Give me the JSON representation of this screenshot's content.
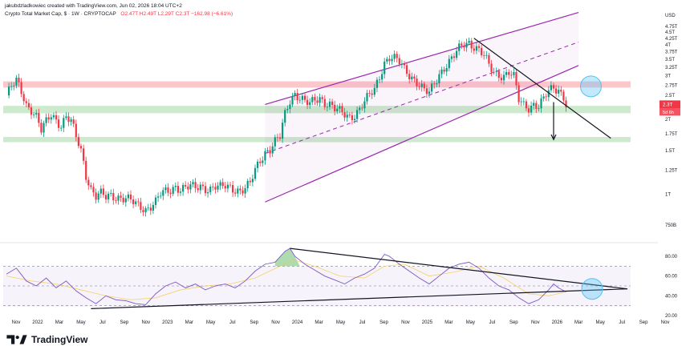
{
  "header": {
    "author_line": "jakubdzladkowiec created with TradingView.com, Jun 02, 2026 18:04 UTC+2",
    "symbol": "Crypto Total Market Cap, $ · 1W · CRYPTOCAP",
    "ohlc": "O2.47T  H2.49T  L2.29T  C2.3T  −162.98 (−6.61%)"
  },
  "footer": {
    "brand": "TradingView"
  },
  "chart_data": [
    {
      "type": "candlestick",
      "title": "Crypto Total Market Cap, $ · 1W · CRYPTOCAP",
      "yunit": "USD",
      "yscale": "log",
      "ylim": [
        0.68,
        5.0
      ],
      "ytick_labels": [
        "USD",
        "4.75T",
        "4.5T",
        "4.25T",
        "4T",
        "3.75T",
        "3.5T",
        "3.25T",
        "3T",
        "2.75T",
        "2.5T",
        "2T",
        "1.75T",
        "1.5T",
        "1.25T",
        "1T",
        "750B"
      ],
      "ytick_values": [
        null,
        4.75,
        4.5,
        4.25,
        4.0,
        3.75,
        3.5,
        3.25,
        3.0,
        2.75,
        2.5,
        2.0,
        1.75,
        1.5,
        1.25,
        1.0,
        0.75
      ],
      "last_price_label": "2.3T",
      "countdown_label": "5d 6h",
      "close_path": [
        [
          0,
          2.5
        ],
        [
          2,
          2.7
        ],
        [
          4,
          2.85
        ],
        [
          6,
          2.6
        ],
        [
          8,
          2.3
        ],
        [
          10,
          2.2
        ],
        [
          12,
          2.05
        ],
        [
          14,
          1.8
        ],
        [
          16,
          1.95
        ],
        [
          18,
          2.1
        ],
        [
          20,
          2.0
        ],
        [
          22,
          1.9
        ],
        [
          24,
          2.05
        ],
        [
          26,
          1.95
        ],
        [
          28,
          1.7
        ],
        [
          30,
          1.5
        ],
        [
          32,
          1.2
        ],
        [
          34,
          1.05
        ],
        [
          36,
          0.98
        ],
        [
          38,
          1.0
        ],
        [
          40,
          0.97
        ],
        [
          42,
          0.99
        ],
        [
          44,
          0.98
        ],
        [
          46,
          0.97
        ],
        [
          48,
          0.96
        ],
        [
          50,
          0.94
        ],
        [
          52,
          0.91
        ],
        [
          54,
          0.89
        ],
        [
          56,
          0.87
        ],
        [
          58,
          0.9
        ],
        [
          60,
          0.93
        ],
        [
          62,
          1.0
        ],
        [
          64,
          1.02
        ],
        [
          66,
          1.04
        ],
        [
          68,
          1.08
        ],
        [
          70,
          1.05
        ],
        [
          72,
          1.06
        ],
        [
          74,
          1.07
        ],
        [
          76,
          1.06
        ],
        [
          78,
          1.08
        ],
        [
          80,
          1.06
        ],
        [
          82,
          1.05
        ],
        [
          84,
          1.07
        ],
        [
          86,
          1.06
        ],
        [
          88,
          1.08
        ],
        [
          90,
          1.07
        ],
        [
          92,
          1.05
        ],
        [
          94,
          1.03
        ],
        [
          96,
          1.05
        ],
        [
          98,
          1.1
        ],
        [
          100,
          1.25
        ],
        [
          102,
          1.38
        ],
        [
          104,
          1.48
        ],
        [
          106,
          1.52
        ],
        [
          108,
          1.62
        ],
        [
          110,
          1.7
        ],
        [
          112,
          2.1
        ],
        [
          114,
          2.4
        ],
        [
          116,
          2.55
        ],
        [
          118,
          2.45
        ],
        [
          120,
          2.35
        ],
        [
          122,
          2.3
        ],
        [
          124,
          2.4
        ],
        [
          126,
          2.45
        ],
        [
          128,
          2.35
        ],
        [
          130,
          2.3
        ],
        [
          132,
          2.2
        ],
        [
          134,
          2.15
        ],
        [
          136,
          2.1
        ],
        [
          138,
          2.05
        ],
        [
          140,
          2.1
        ],
        [
          142,
          2.2
        ],
        [
          144,
          2.35
        ],
        [
          146,
          2.5
        ],
        [
          148,
          2.65
        ],
        [
          150,
          3.0
        ],
        [
          152,
          3.4
        ],
        [
          154,
          3.55
        ],
        [
          156,
          3.5
        ],
        [
          158,
          3.4
        ],
        [
          160,
          3.2
        ],
        [
          162,
          3.05
        ],
        [
          164,
          2.9
        ],
        [
          166,
          2.75
        ],
        [
          168,
          2.6
        ],
        [
          170,
          2.55
        ],
        [
          172,
          2.8
        ],
        [
          174,
          3.05
        ],
        [
          176,
          3.25
        ],
        [
          178,
          3.4
        ],
        [
          180,
          3.6
        ],
        [
          182,
          3.85
        ],
        [
          184,
          4.05
        ],
        [
          186,
          4.1
        ],
        [
          188,
          3.95
        ],
        [
          190,
          3.8
        ],
        [
          192,
          3.6
        ],
        [
          194,
          3.3
        ],
        [
          196,
          3.1
        ],
        [
          198,
          3.05
        ],
        [
          200,
          3.0
        ],
        [
          202,
          3.1
        ],
        [
          204,
          2.95
        ],
        [
          206,
          2.4
        ],
        [
          208,
          2.3
        ],
        [
          210,
          2.25
        ],
        [
          212,
          2.3
        ],
        [
          214,
          2.25
        ],
        [
          216,
          2.4
        ],
        [
          218,
          2.6
        ],
        [
          220,
          2.7
        ],
        [
          222,
          2.65
        ],
        [
          224,
          2.47
        ],
        [
          225,
          2.3
        ]
      ],
      "xtick_labels": [
        "Nov",
        "2022",
        "Mar",
        "May",
        "Jul",
        "Sep",
        "Nov",
        "2023",
        "Mar",
        "May",
        "Jul",
        "Sep",
        "Nov",
        "2024",
        "Mar",
        "May",
        "Jul",
        "Sep",
        "Nov",
        "2025",
        "Mar",
        "May",
        "Jul",
        "Sep",
        "Nov",
        "2026",
        "Mar",
        "May",
        "Jul",
        "Sep",
        "Nov"
      ],
      "xtick_weeks": [
        0,
        8.7,
        17.4,
        26.1,
        34.8,
        43.5,
        52.2,
        60.9,
        69.6,
        78.3,
        87,
        95.7,
        104.4,
        113.1,
        121.8,
        130.5,
        139.2,
        147.9,
        156.6,
        165.3,
        174,
        182.7,
        191.4,
        200.1,
        208.8,
        217.5,
        226.2,
        234.9,
        243.6,
        252.3,
        261
      ]
    },
    {
      "type": "line",
      "title": "",
      "ylim": [
        20,
        90
      ],
      "ytick_labels": [
        "80.00",
        "60.00",
        "40.00",
        "20.00"
      ],
      "ytick_values": [
        80,
        60,
        40,
        20
      ],
      "hline_values": [
        70,
        50,
        30
      ],
      "series": [
        {
          "points": [
            [
              0,
              62
            ],
            [
              4,
              68
            ],
            [
              8,
              55
            ],
            [
              12,
              50
            ],
            [
              16,
              58
            ],
            [
              20,
              48
            ],
            [
              24,
              55
            ],
            [
              28,
              45
            ],
            [
              32,
              38
            ],
            [
              36,
              32
            ],
            [
              40,
              40
            ],
            [
              44,
              36
            ],
            [
              48,
              35
            ],
            [
              52,
              32
            ],
            [
              56,
              31
            ],
            [
              60,
              42
            ],
            [
              64,
              50
            ],
            [
              68,
              54
            ],
            [
              72,
              48
            ],
            [
              76,
              52
            ],
            [
              80,
              46
            ],
            [
              84,
              50
            ],
            [
              88,
              52
            ],
            [
              92,
              48
            ],
            [
              96,
              55
            ],
            [
              100,
              65
            ],
            [
              104,
              72
            ],
            [
              108,
              74
            ],
            [
              112,
              85
            ],
            [
              114,
              88
            ],
            [
              116,
              80
            ],
            [
              120,
              72
            ],
            [
              124,
              66
            ],
            [
              128,
              60
            ],
            [
              132,
              56
            ],
            [
              136,
              52
            ],
            [
              140,
              58
            ],
            [
              144,
              62
            ],
            [
              148,
              68
            ],
            [
              150,
              75
            ],
            [
              152,
              82
            ],
            [
              154,
              80
            ],
            [
              158,
              72
            ],
            [
              162,
              65
            ],
            [
              166,
              58
            ],
            [
              170,
              52
            ],
            [
              174,
              60
            ],
            [
              178,
              68
            ],
            [
              182,
              72
            ],
            [
              186,
              74
            ],
            [
              190,
              68
            ],
            [
              194,
              58
            ],
            [
              198,
              50
            ],
            [
              202,
              46
            ],
            [
              206,
              38
            ],
            [
              210,
              32
            ],
            [
              214,
              36
            ],
            [
              218,
              46
            ],
            [
              220,
              52
            ],
            [
              222,
              48
            ],
            [
              225,
              44
            ]
          ]
        },
        {
          "points": [
            [
              0,
              60
            ],
            [
              10,
              55
            ],
            [
              20,
              52
            ],
            [
              30,
              46
            ],
            [
              40,
              40
            ],
            [
              50,
              36
            ],
            [
              60,
              38
            ],
            [
              70,
              46
            ],
            [
              80,
              50
            ],
            [
              90,
              52
            ],
            [
              100,
              58
            ],
            [
              110,
              70
            ],
            [
              116,
              76
            ],
            [
              124,
              70
            ],
            [
              134,
              60
            ],
            [
              144,
              58
            ],
            [
              152,
              70
            ],
            [
              160,
              72
            ],
            [
              170,
              60
            ],
            [
              180,
              64
            ],
            [
              190,
              70
            ],
            [
              200,
              58
            ],
            [
              210,
              42
            ],
            [
              218,
              40
            ],
            [
              225,
              44
            ]
          ]
        }
      ]
    }
  ]
}
